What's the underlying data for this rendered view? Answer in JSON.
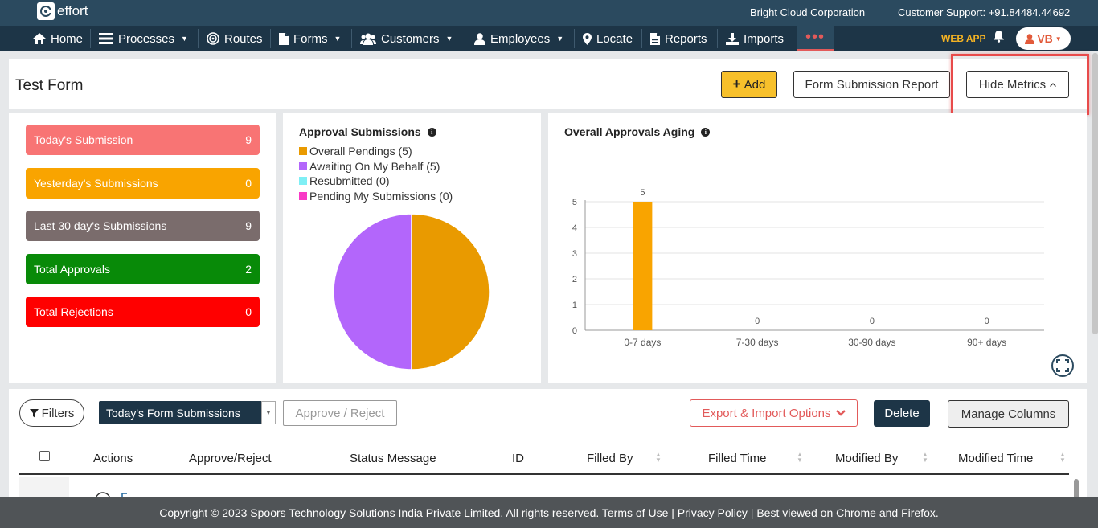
{
  "app": {
    "logo_text": "effort",
    "company": "Bright Cloud Corporation",
    "support": "Customer Support: +91.84484.44692"
  },
  "nav": {
    "items": [
      {
        "label": "Home",
        "icon": "home-icon"
      },
      {
        "label": "Processes",
        "icon": "list-icon"
      },
      {
        "label": "Routes",
        "icon": "target-icon"
      },
      {
        "label": "Forms",
        "icon": "file-icon"
      },
      {
        "label": "Customers",
        "icon": "users-icon"
      },
      {
        "label": "Employees",
        "icon": "user-icon"
      },
      {
        "label": "Locate",
        "icon": "pin-icon"
      },
      {
        "label": "Reports",
        "icon": "report-icon"
      },
      {
        "label": "Imports",
        "icon": "download-icon"
      }
    ],
    "more": "•••",
    "webapp": "WEB APP",
    "user_initials": "VB"
  },
  "header": {
    "title": "Test Form",
    "add_label": "Add",
    "report_label": "Form Submission Report",
    "hide_metrics_label": "Hide Metrics"
  },
  "metrics": [
    {
      "label": "Today's Submission",
      "value": "9",
      "color": "#f87474"
    },
    {
      "label": "Yesterday's Submissions",
      "value": "0",
      "color": "#f9a400"
    },
    {
      "label": "Last 30 day's Submissions",
      "value": "9",
      "color": "#7a6c6c"
    },
    {
      "label": "Total Approvals",
      "value": "2",
      "color": "#088a08"
    },
    {
      "label": "Total Rejections",
      "value": "0",
      "color": "#ff0000"
    }
  ],
  "chart_data": [
    {
      "type": "pie",
      "title": "Approval Submissions",
      "series": [
        {
          "name": "Overall Pendings",
          "value": 5,
          "label": "Overall Pendings (5)",
          "color": "#e99a00"
        },
        {
          "name": "Awaiting On My Behalf",
          "value": 5,
          "label": "Awaiting On My Behalf (5)",
          "color": "#b366fb"
        },
        {
          "name": "Resubmitted",
          "value": 0,
          "label": "Resubmitted (0)",
          "color": "#7feff5"
        },
        {
          "name": "Pending My Submissions",
          "value": 0,
          "label": "Pending My Submissions (0)",
          "color": "#f93ac6"
        }
      ]
    },
    {
      "type": "bar",
      "title": "Overall Approvals Aging",
      "categories": [
        "0-7 days",
        "7-30 days",
        "30-90 days",
        "90+ days"
      ],
      "values": [
        5,
        0,
        0,
        0
      ],
      "ylim": [
        0,
        5
      ],
      "yticks": [
        "0",
        "1",
        "2",
        "3",
        "4",
        "5"
      ],
      "color": "#f9a400",
      "grid": true
    }
  ],
  "table": {
    "filters_label": "Filters",
    "select_value": "Today's Form Submissions",
    "approve_label": "Approve / Reject",
    "export_label": "Export & Import Options",
    "delete_label": "Delete",
    "manage_label": "Manage Columns",
    "columns": [
      "Actions",
      "Approve/Reject",
      "Status Message",
      "ID",
      "Filled By",
      "Filled Time",
      "Modified By",
      "Modified Time"
    ]
  },
  "footer": {
    "text": "Copyright © 2023 Spoors Technology Solutions India Private Limited. All rights reserved. Terms of Use | Privacy Policy | Best viewed on Chrome and Firefox."
  }
}
